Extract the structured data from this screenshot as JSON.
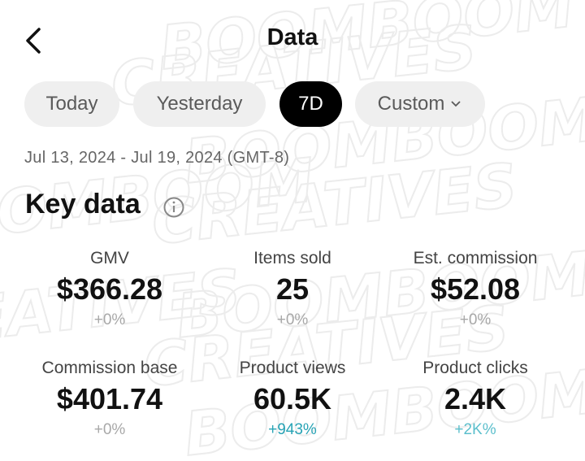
{
  "header": {
    "title": "Data"
  },
  "tabs": [
    {
      "label": "Today",
      "active": false
    },
    {
      "label": "Yesterday",
      "active": false
    },
    {
      "label": "7D",
      "active": true
    },
    {
      "label": "Custom",
      "active": false
    }
  ],
  "date_range": "Jul 13, 2024 - Jul 19, 2024 (GMT-8)",
  "section_title": "Key data",
  "metrics": [
    {
      "label": "GMV",
      "value": "$366.28",
      "change": "+0%",
      "color": "#a8a8a8"
    },
    {
      "label": "Items sold",
      "value": "25",
      "change": "+0%",
      "color": "#a8a8a8"
    },
    {
      "label": "Est. commission",
      "value": "$52.08",
      "change": "+0%",
      "color": "#a8a8a8"
    },
    {
      "label": "Commission base",
      "value": "$401.74",
      "change": "+0%",
      "color": "#a8a8a8"
    },
    {
      "label": "Product views",
      "value": "60.5K",
      "change": "+943%",
      "color": "#27a3b5"
    },
    {
      "label": "Product clicks",
      "value": "2.4K",
      "change": "+2K%",
      "color": "#5cbfcc"
    }
  ],
  "watermark": [
    "BOOMBOOM",
    "CREATIVES"
  ]
}
